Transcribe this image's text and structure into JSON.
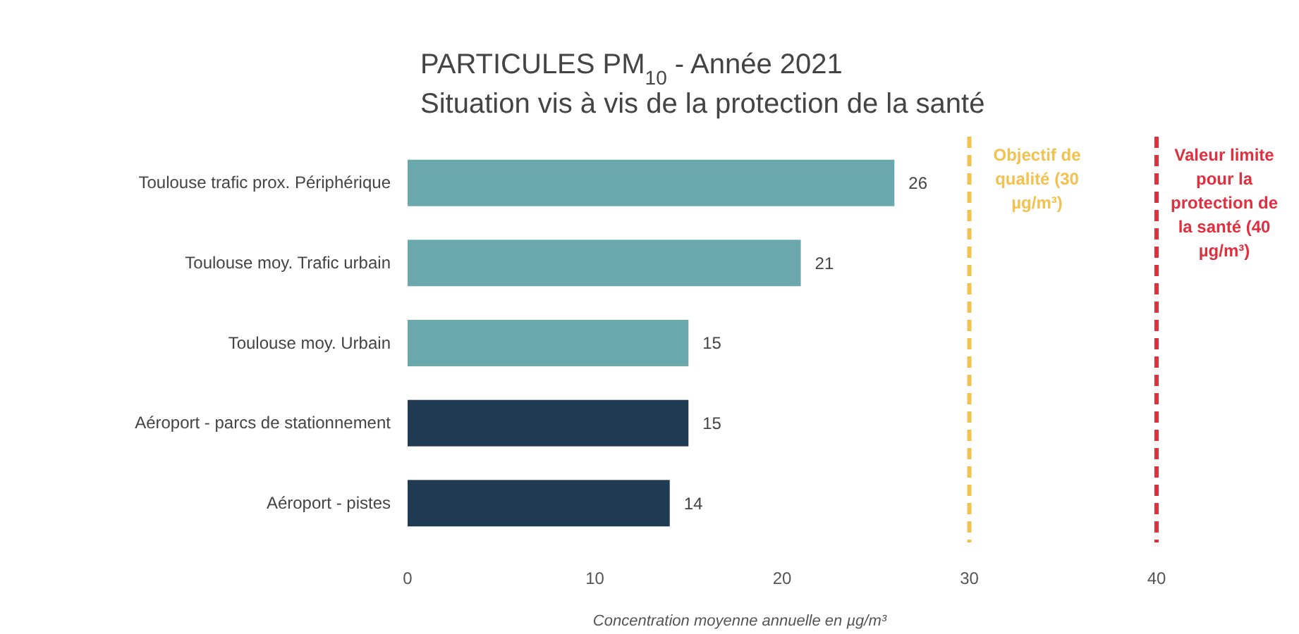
{
  "chart_data": {
    "type": "bar",
    "orientation": "horizontal",
    "title": "PARTICULES PM$_{10}$ - Année 2021",
    "subtitle": "Situation vis à vis de la protection de la santé",
    "xlabel": "Concentration moyenne annuelle en µg/m³",
    "categories": [
      "Toulouse trafic prox. Périphérique",
      "Toulouse moy. Trafic urbain",
      "Toulouse moy. Urbain",
      "Aéroport - parcs de stationnement",
      "Aéroport - pistes"
    ],
    "values": [
      26,
      21,
      15,
      15,
      14
    ],
    "colors": [
      "#6aa8ad",
      "#6aa8ad",
      "#6aa8ad",
      "#1f3a52",
      "#1f3a52"
    ],
    "xlim": [
      0,
      40
    ],
    "xticks": [
      0,
      10,
      20,
      30,
      40
    ],
    "data_labels": true,
    "grid": false,
    "ref_lines": [
      {
        "axis": "x",
        "value": 30,
        "label": "Objectif de qualité (30 µg/m³)",
        "color": "#f2c14e",
        "line_style": "dashed"
      },
      {
        "axis": "x",
        "value": 40,
        "label": "Valeur limite pour la protection de la santé (40 µg/m³)",
        "color": "#e0303f",
        "line_style": "dashed"
      }
    ]
  }
}
